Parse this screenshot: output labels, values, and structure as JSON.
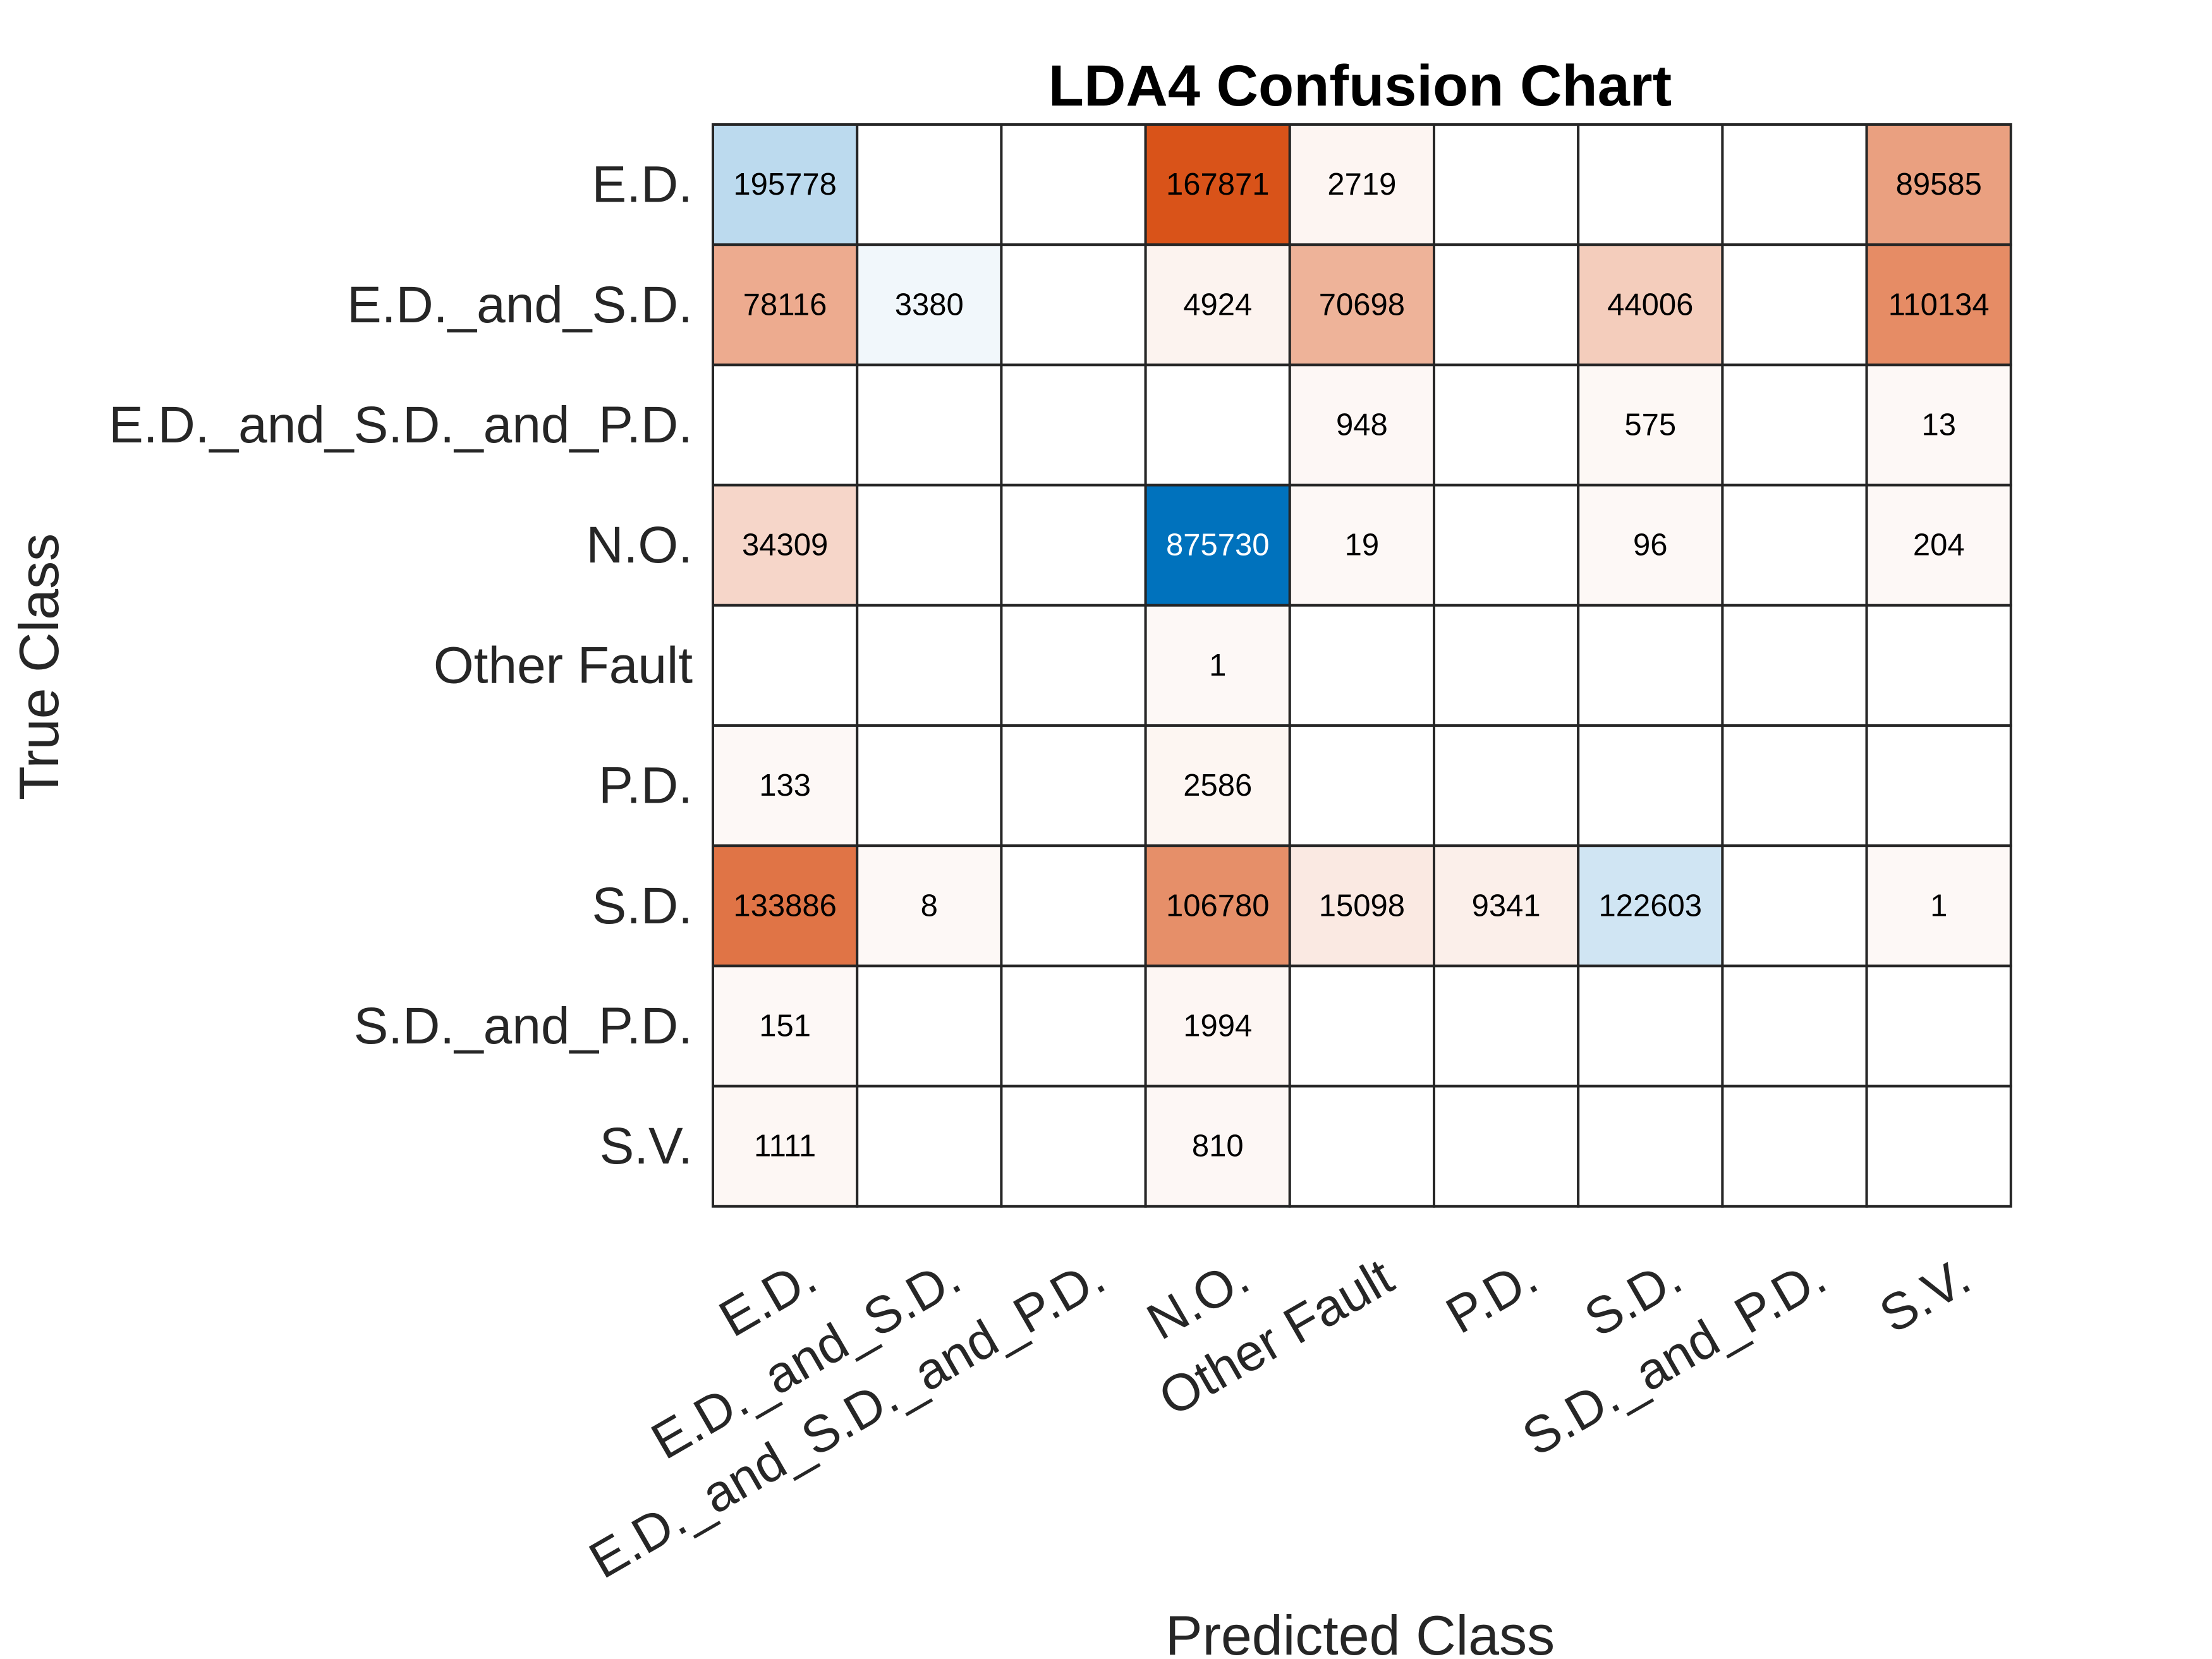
{
  "chart_data": {
    "type": "heatmap",
    "title": "LDA4 Confusion Chart",
    "xlabel": "Predicted Class",
    "ylabel": "True Class",
    "classes": [
      "E.D.",
      "E.D._and_S.D.",
      "E.D._and_S.D._and_P.D.",
      "N.O.",
      "Other Fault",
      "P.D.",
      "S.D.",
      "S.D._and_P.D.",
      "S.V."
    ],
    "matrix": [
      [
        195778,
        null,
        null,
        167871,
        2719,
        null,
        null,
        null,
        89585
      ],
      [
        78116,
        3380,
        null,
        4924,
        70698,
        null,
        44006,
        null,
        110134
      ],
      [
        null,
        null,
        null,
        null,
        948,
        null,
        575,
        null,
        13
      ],
      [
        34309,
        null,
        null,
        875730,
        19,
        null,
        96,
        null,
        204
      ],
      [
        null,
        null,
        null,
        1,
        null,
        null,
        null,
        null,
        null
      ],
      [
        133,
        null,
        null,
        2586,
        null,
        null,
        null,
        null,
        null
      ],
      [
        133886,
        8,
        null,
        106780,
        15098,
        9341,
        122603,
        null,
        1
      ],
      [
        151,
        null,
        null,
        1994,
        null,
        null,
        null,
        null,
        null
      ],
      [
        1111,
        null,
        null,
        810,
        null,
        null,
        null,
        null,
        null
      ]
    ],
    "colors": {
      "correct_max": "#0072BD",
      "incorrect_max": "#D95319",
      "empty": "#FFFFFF",
      "text_dark": "#000000",
      "text_light": "#FFFFFF",
      "grid": "#262626"
    }
  }
}
